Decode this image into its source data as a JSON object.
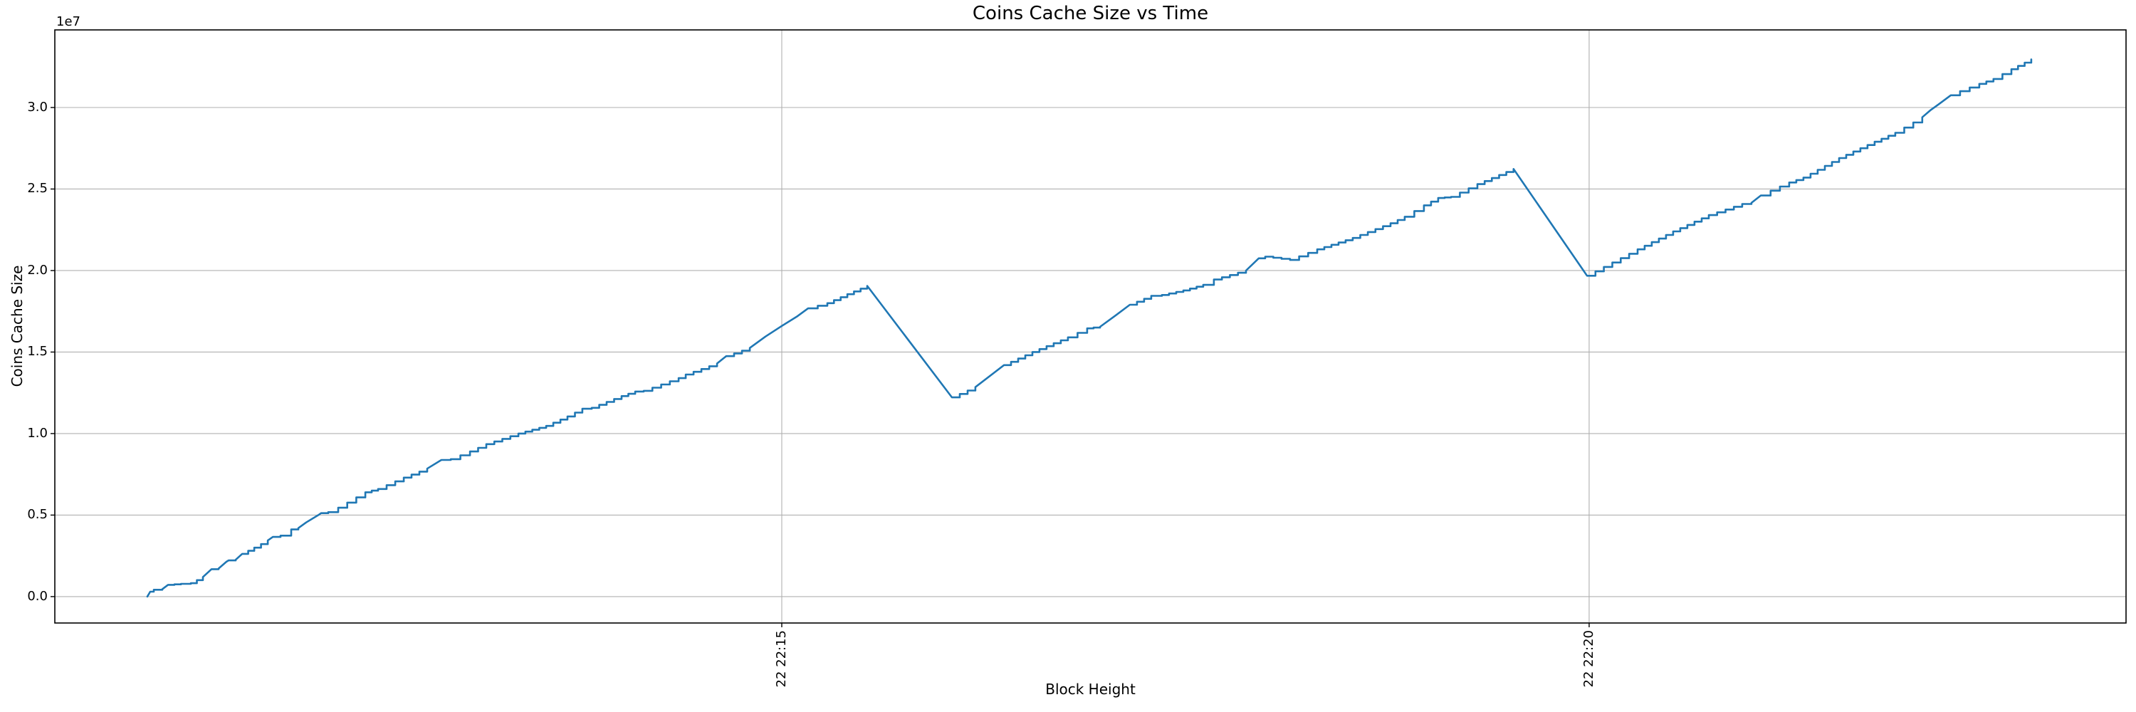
{
  "chart_data": {
    "type": "line",
    "title": "Coins Cache Size vs Time",
    "xlabel": "Block Height",
    "ylabel": "Coins Cache Size",
    "y_offset_label": "1e7",
    "grid": true,
    "legend_position": "none",
    "axes": {
      "x_unit": "minutes relative to tick 22 22:15",
      "xlim": [
        -4.502,
        8.325
      ],
      "ylim": [
        -0.162,
        3.476
      ],
      "x_ticks": [
        {
          "value": 0,
          "label": "22 22:15"
        },
        {
          "value": 5,
          "label": "22 22:20"
        }
      ],
      "y_ticks": [
        {
          "value": 0.0,
          "label": "0.0"
        },
        {
          "value": 0.5,
          "label": "0.5"
        },
        {
          "value": 1.0,
          "label": "1.0"
        },
        {
          "value": 1.5,
          "label": "1.5"
        },
        {
          "value": 2.0,
          "label": "2.0"
        },
        {
          "value": 2.5,
          "label": "2.5"
        },
        {
          "value": 3.0,
          "label": "3.0"
        }
      ]
    },
    "colors": {
      "line": "#1f77b4",
      "grid": "#b0b0b0",
      "spine": "#000000",
      "text": "#000000",
      "background": "#ffffff"
    },
    "series": [
      {
        "name": "Coins Cache Size",
        "units": "1e7",
        "points": [
          [
            -3.929,
            0.0
          ],
          [
            -3.911,
            0.03
          ],
          [
            -3.889,
            0.042
          ],
          [
            -3.836,
            0.046
          ],
          [
            -3.801,
            0.072
          ],
          [
            -3.721,
            0.078
          ],
          [
            -3.66,
            0.082
          ],
          [
            -3.585,
            0.12
          ],
          [
            -3.532,
            0.168
          ],
          [
            -3.488,
            0.172
          ],
          [
            -3.439,
            0.214
          ],
          [
            -3.426,
            0.222
          ],
          [
            -3.382,
            0.226
          ],
          [
            -3.342,
            0.262
          ],
          [
            -3.267,
            0.3
          ],
          [
            -3.183,
            0.344
          ],
          [
            -3.152,
            0.366
          ],
          [
            -3.104,
            0.374
          ],
          [
            -3.038,
            0.412
          ],
          [
            -2.994,
            0.42
          ],
          [
            -2.945,
            0.455
          ],
          [
            -2.87,
            0.5
          ],
          [
            -2.853,
            0.512
          ],
          [
            -2.809,
            0.518
          ],
          [
            -2.747,
            0.545
          ],
          [
            -2.579,
            0.64
          ],
          [
            -2.5,
            0.66
          ],
          [
            -2.341,
            0.73
          ],
          [
            -2.196,
            0.785
          ],
          [
            -2.108,
            0.838
          ],
          [
            -2.05,
            0.843
          ],
          [
            -1.931,
            0.89
          ],
          [
            -1.83,
            0.935
          ],
          [
            -1.631,
            1.0
          ],
          [
            -1.459,
            1.047
          ],
          [
            -1.327,
            1.105
          ],
          [
            -1.235,
            1.152
          ],
          [
            -1.177,
            1.158
          ],
          [
            -0.992,
            1.23
          ],
          [
            -0.908,
            1.258
          ],
          [
            -0.855,
            1.262
          ],
          [
            -0.639,
            1.34
          ],
          [
            -0.595,
            1.362
          ],
          [
            -0.401,
            1.43
          ],
          [
            -0.344,
            1.475
          ],
          [
            -0.198,
            1.525
          ],
          [
            -0.101,
            1.595
          ],
          [
            0.0,
            1.66
          ],
          [
            0.097,
            1.72
          ],
          [
            0.163,
            1.768
          ],
          [
            0.282,
            1.8
          ],
          [
            0.406,
            1.855
          ],
          [
            0.529,
            1.906
          ],
          [
            1.054,
            1.222
          ],
          [
            1.199,
            1.285
          ],
          [
            1.376,
            1.42
          ],
          [
            1.552,
            1.5
          ],
          [
            1.772,
            1.59
          ],
          [
            1.891,
            1.645
          ],
          [
            1.971,
            1.655
          ],
          [
            2.068,
            1.725
          ],
          [
            2.156,
            1.79
          ],
          [
            2.288,
            1.845
          ],
          [
            2.354,
            1.85
          ],
          [
            2.487,
            1.878
          ],
          [
            2.61,
            1.912
          ],
          [
            2.676,
            1.945
          ],
          [
            2.875,
            2.0
          ],
          [
            2.954,
            2.075
          ],
          [
            2.994,
            2.085
          ],
          [
            3.095,
            2.072
          ],
          [
            3.148,
            2.065
          ],
          [
            3.316,
            2.13
          ],
          [
            3.536,
            2.2
          ],
          [
            3.77,
            2.29
          ],
          [
            3.858,
            2.33
          ],
          [
            3.977,
            2.4
          ],
          [
            4.065,
            2.445
          ],
          [
            4.145,
            2.452
          ],
          [
            4.308,
            2.53
          ],
          [
            4.532,
            2.623
          ],
          [
            4.987,
            1.968
          ],
          [
            5.3,
            2.13
          ],
          [
            5.52,
            2.24
          ],
          [
            5.741,
            2.34
          ],
          [
            5.948,
            2.408
          ],
          [
            6.005,
            2.415
          ],
          [
            6.063,
            2.46
          ],
          [
            6.124,
            2.49
          ],
          [
            6.239,
            2.54
          ],
          [
            6.327,
            2.57
          ],
          [
            6.548,
            2.69
          ],
          [
            6.768,
            2.79
          ],
          [
            6.896,
            2.845
          ],
          [
            7.063,
            2.94
          ],
          [
            7.116,
            2.985
          ],
          [
            7.165,
            3.02
          ],
          [
            7.24,
            3.075
          ],
          [
            7.297,
            3.1
          ],
          [
            7.416,
            3.145
          ],
          [
            7.504,
            3.175
          ],
          [
            7.615,
            3.235
          ],
          [
            7.738,
            3.295
          ]
        ]
      }
    ]
  }
}
